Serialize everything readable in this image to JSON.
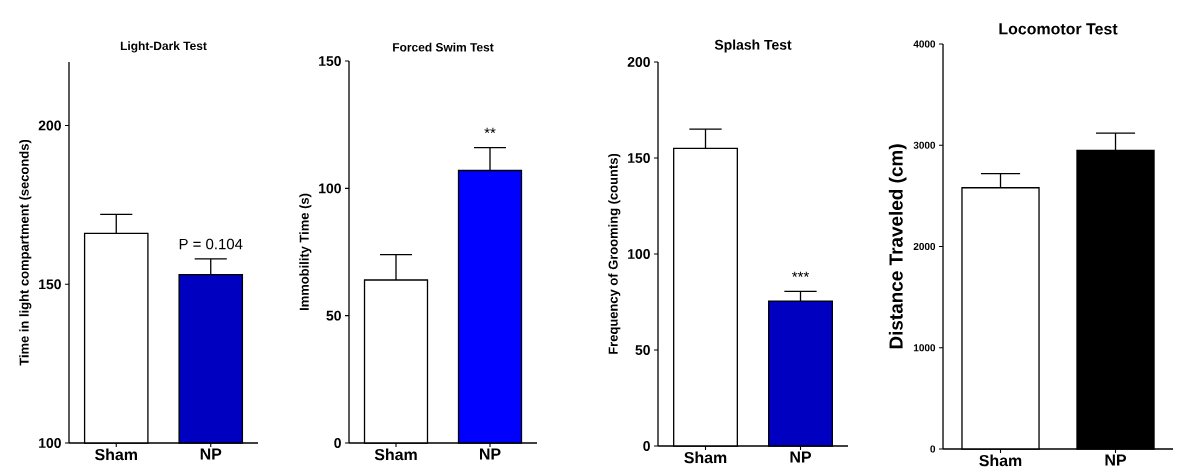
{
  "chart_data": [
    {
      "type": "bar",
      "title": "Light-Dark Test",
      "ylabel": "Time in light compartment (seconds)",
      "categories": [
        "Sham",
        "NP"
      ],
      "values": [
        166,
        153
      ],
      "errors": [
        [
          166,
          172
        ],
        [
          153,
          158
        ]
      ],
      "colors": [
        "#ffffff",
        "#0000c0"
      ],
      "ylim": [
        100,
        220
      ],
      "yticks": [
        100,
        150,
        200
      ],
      "annotations": [
        "P = 0.104"
      ]
    },
    {
      "type": "bar",
      "title": "Forced Swim Test",
      "ylabel": "Immobility Time (s)",
      "categories": [
        "Sham",
        "NP"
      ],
      "values": [
        64,
        107
      ],
      "errors": [
        [
          64,
          74
        ],
        [
          107,
          116
        ]
      ],
      "colors": [
        "#ffffff",
        "#0000ff"
      ],
      "ylim": [
        0,
        150
      ],
      "yticks": [
        0,
        50,
        100,
        150
      ],
      "annotations": [
        "**"
      ]
    },
    {
      "type": "bar",
      "title": "Splash Test",
      "ylabel": "Frequency of Grooming (counts)",
      "categories": [
        "Sham",
        "NP"
      ],
      "values": [
        155,
        75.5
      ],
      "errors": [
        [
          155,
          165
        ],
        [
          75.5,
          80.5
        ]
      ],
      "colors": [
        "#ffffff",
        "#0000c0"
      ],
      "ylim": [
        0,
        200
      ],
      "yticks": [
        0,
        50,
        100,
        150,
        200
      ],
      "annotations": [
        "***"
      ]
    },
    {
      "type": "bar",
      "title": "Locomotor Test",
      "ylabel": "Distance Traveled (cm)",
      "categories": [
        "Sham",
        "NP"
      ],
      "values": [
        2580,
        2950
      ],
      "errors": [
        [
          2580,
          2720
        ],
        [
          2950,
          3120
        ]
      ],
      "colors": [
        "#ffffff",
        "#000000"
      ],
      "ylim": [
        0,
        4000
      ],
      "yticks": [
        0,
        1000,
        2000,
        3000,
        4000
      ]
    }
  ]
}
